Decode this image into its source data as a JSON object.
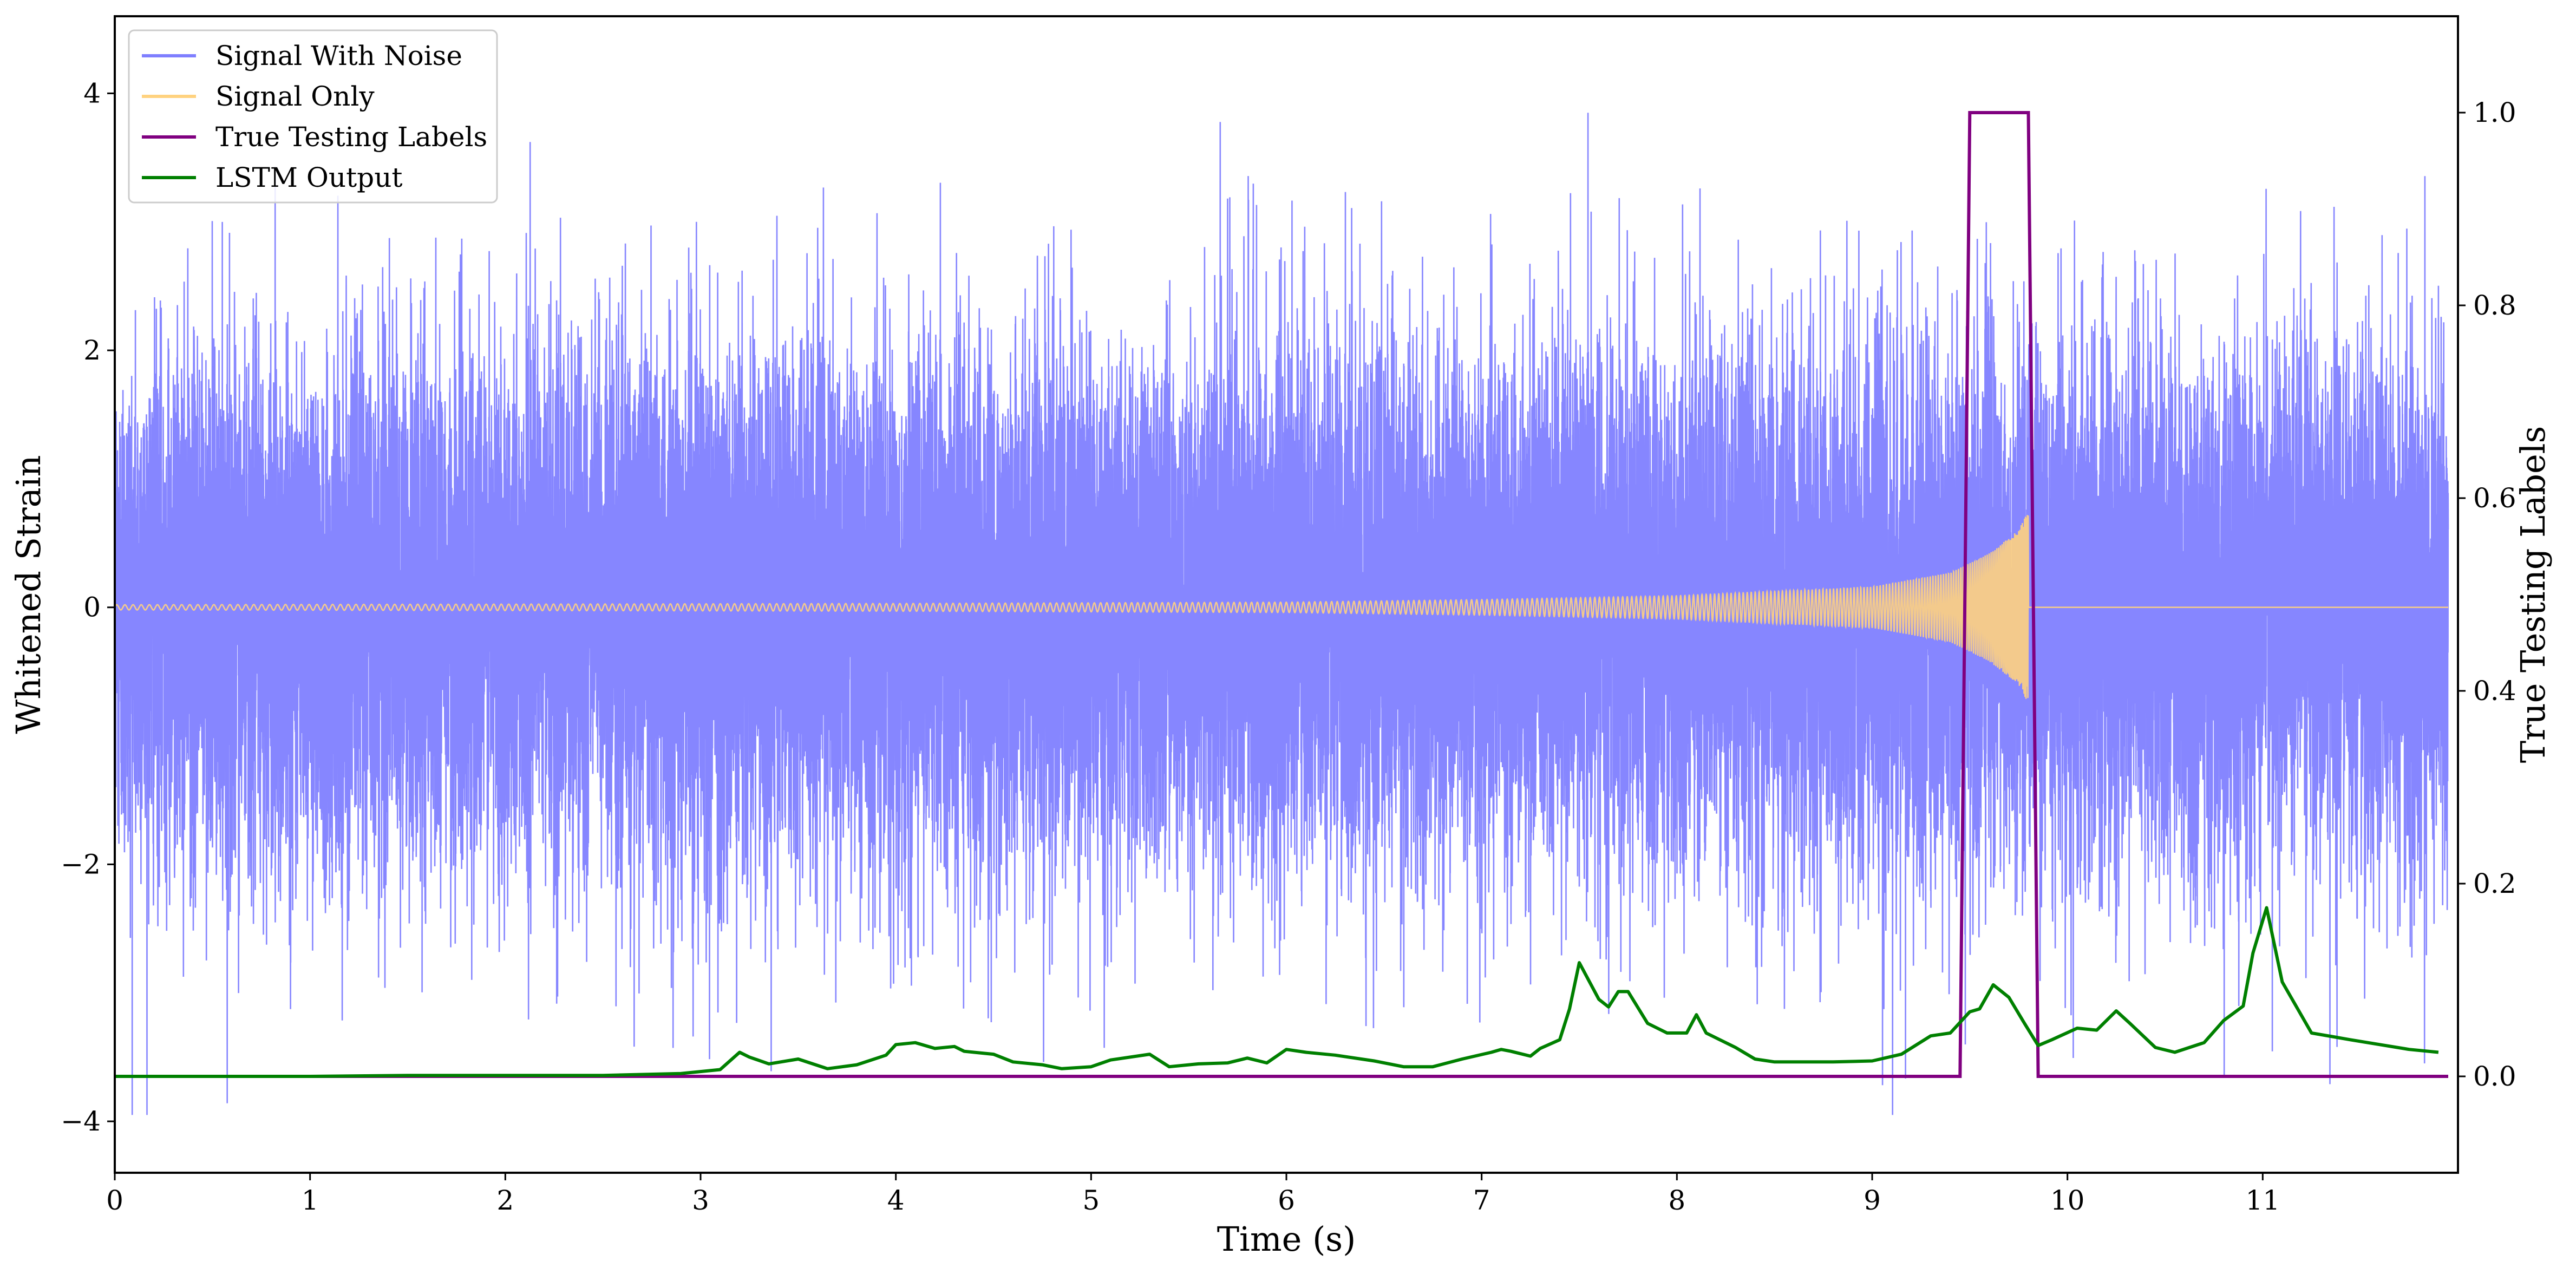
{
  "chart_data": {
    "type": "line",
    "xlabel": "Time (s)",
    "ylabel": "Whitened Strain",
    "y2label": "True Testing Labels",
    "xlim": [
      0,
      12
    ],
    "ylim": [
      -4.4,
      4.6
    ],
    "y2lim": [
      -0.1,
      1.1
    ],
    "x_ticks": [
      0,
      1,
      2,
      3,
      4,
      5,
      6,
      7,
      8,
      9,
      10,
      11
    ],
    "y_ticks": [
      -4,
      -2,
      0,
      2,
      4
    ],
    "y_tick_labels": [
      "−4",
      "−2",
      "0",
      "2",
      "4"
    ],
    "y2_ticks": [
      0.0,
      0.2,
      0.4,
      0.6,
      0.8,
      1.0
    ],
    "y2_tick_labels": [
      "0.0",
      "0.2",
      "0.4",
      "0.6",
      "0.8",
      "1.0"
    ],
    "legend_position": "top-left",
    "grid": false,
    "series": [
      {
        "name": "Signal With Noise",
        "axis": "left",
        "color": "#7f7fff",
        "style": "dense noise, approx. std 1.0, peaks near ±4",
        "noise_std": 1.0
      },
      {
        "name": "Signal Only",
        "axis": "left",
        "color": "#ffd27f",
        "style": "chirp, amplitude grows toward merger",
        "chirp_end_time": 9.8,
        "amplitude_points": [
          [
            0,
            0.02
          ],
          [
            4,
            0.03
          ],
          [
            6,
            0.04
          ],
          [
            7,
            0.06
          ],
          [
            8,
            0.09
          ],
          [
            9,
            0.16
          ],
          [
            9.4,
            0.27
          ],
          [
            9.6,
            0.42
          ],
          [
            9.75,
            0.6
          ],
          [
            9.8,
            0.75
          ]
        ]
      },
      {
        "name": "True Testing Labels",
        "axis": "right",
        "color": "#800080",
        "x": [
          0,
          9.45,
          9.5,
          9.8,
          9.85,
          11.95
        ],
        "y": [
          0,
          0,
          1,
          1,
          0,
          0
        ]
      },
      {
        "name": "LSTM Output",
        "axis": "right",
        "color": "#008000",
        "x": [
          0,
          1.0,
          1.5,
          2.0,
          2.5,
          2.9,
          3.1,
          3.2,
          3.25,
          3.35,
          3.5,
          3.65,
          3.8,
          3.95,
          4.0,
          4.1,
          4.2,
          4.3,
          4.35,
          4.5,
          4.6,
          4.75,
          4.85,
          5.0,
          5.1,
          5.3,
          5.4,
          5.55,
          5.7,
          5.8,
          5.9,
          6.0,
          6.1,
          6.25,
          6.45,
          6.6,
          6.75,
          6.9,
          7.05,
          7.1,
          7.15,
          7.25,
          7.3,
          7.4,
          7.45,
          7.5,
          7.6,
          7.65,
          7.7,
          7.75,
          7.85,
          7.95,
          8.05,
          8.1,
          8.15,
          8.3,
          8.4,
          8.5,
          8.8,
          9.0,
          9.15,
          9.3,
          9.4,
          9.5,
          9.55,
          9.62,
          9.7,
          9.78,
          9.85,
          9.92,
          10.05,
          10.15,
          10.25,
          10.32,
          10.45,
          10.55,
          10.7,
          10.8,
          10.9,
          10.95,
          11.02,
          11.1,
          11.25,
          11.45,
          11.6,
          11.75,
          11.9
        ],
        "y": [
          0.0,
          0.0,
          0.001,
          0.001,
          0.001,
          0.003,
          0.007,
          0.025,
          0.02,
          0.013,
          0.018,
          0.008,
          0.012,
          0.022,
          0.033,
          0.035,
          0.029,
          0.031,
          0.026,
          0.023,
          0.015,
          0.012,
          0.008,
          0.01,
          0.017,
          0.023,
          0.01,
          0.013,
          0.014,
          0.019,
          0.014,
          0.028,
          0.025,
          0.022,
          0.016,
          0.01,
          0.01,
          0.018,
          0.025,
          0.028,
          0.026,
          0.021,
          0.029,
          0.038,
          0.07,
          0.118,
          0.08,
          0.072,
          0.088,
          0.088,
          0.055,
          0.045,
          0.045,
          0.064,
          0.045,
          0.03,
          0.018,
          0.015,
          0.015,
          0.016,
          0.023,
          0.042,
          0.045,
          0.067,
          0.07,
          0.095,
          0.082,
          0.055,
          0.032,
          0.038,
          0.05,
          0.048,
          0.068,
          0.055,
          0.03,
          0.025,
          0.035,
          0.058,
          0.073,
          0.128,
          0.175,
          0.098,
          0.045,
          0.038,
          0.033,
          0.028,
          0.025
        ]
      }
    ]
  }
}
